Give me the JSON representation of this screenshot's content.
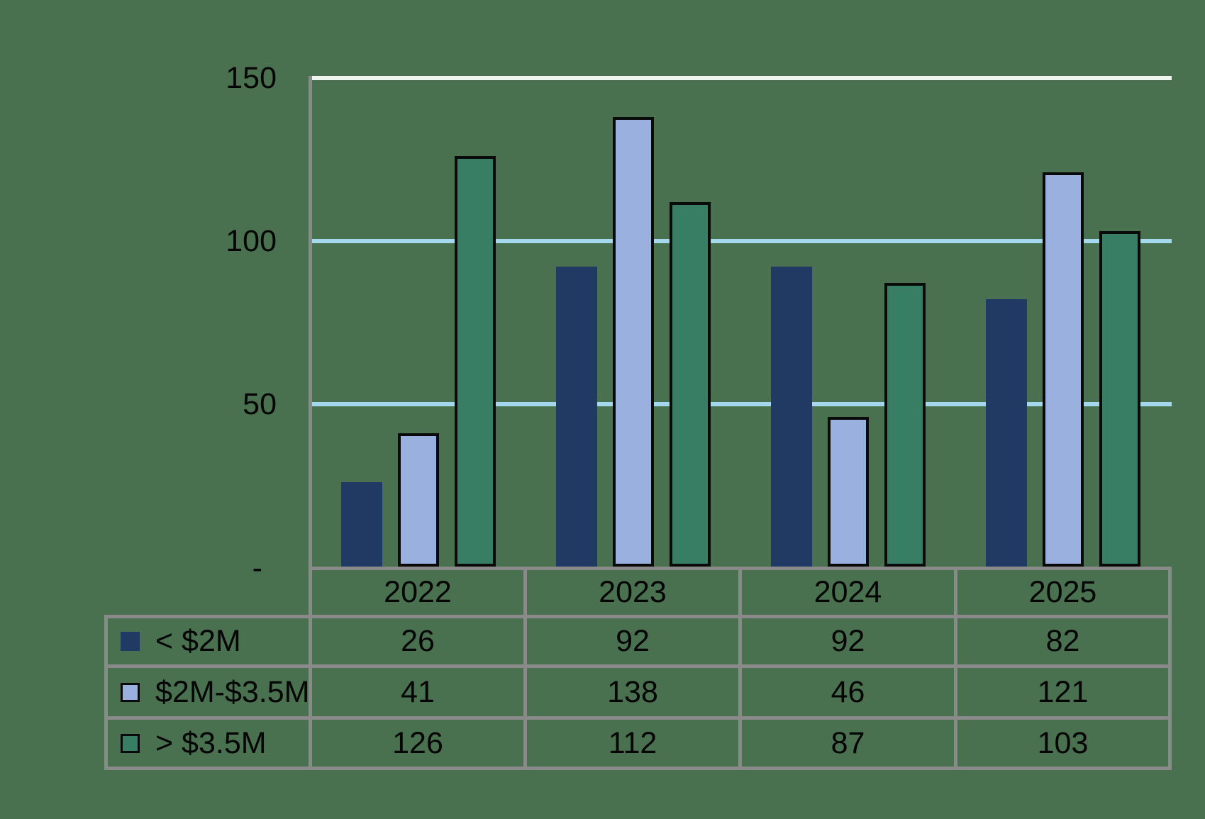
{
  "chart_data": {
    "type": "bar",
    "title": "",
    "categories": [
      "2022",
      "2023",
      "2024",
      "2025"
    ],
    "series": [
      {
        "name": "< $2M",
        "color": "#213A63",
        "border_color": null,
        "values": [
          26,
          92,
          92,
          82
        ]
      },
      {
        "name": "$2M-$3.5M",
        "color": "#9AB1E0",
        "border_color": "#0A0A0A",
        "values": [
          41,
          138,
          46,
          121
        ]
      },
      {
        "name": "> $3.5M",
        "color": "#387E65",
        "border_color": "#0A0A0A",
        "values": [
          126,
          112,
          87,
          103
        ]
      }
    ],
    "ylim": [
      0,
      150
    ],
    "y_ticks": [
      {
        "label": "150",
        "value": 150
      },
      {
        "label": "100",
        "value": 100
      },
      {
        "label": "50",
        "value": 50
      },
      {
        "label": "-",
        "value": 0
      }
    ],
    "gridlines": {
      "values": [
        50,
        100,
        150
      ],
      "color_default": "#A5D8ED",
      "color_top": "#EFF4F1"
    },
    "legend_position": "table-left-column",
    "axis_color": "#8A8A8A",
    "background_color": "#49704F",
    "text_color": "#050505"
  }
}
